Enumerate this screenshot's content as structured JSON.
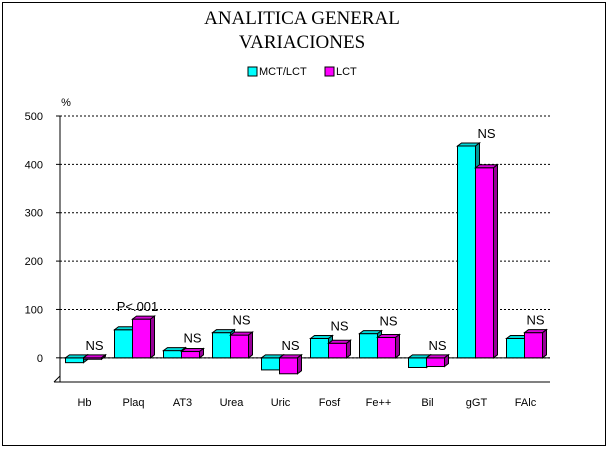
{
  "chart_data": {
    "type": "bar",
    "title": "ANALITICA GENERAL",
    "subtitle": "VARIACIONES",
    "ylabel": "%",
    "xlabel": "",
    "ylim": [
      -50,
      500
    ],
    "yticks": [
      0,
      100,
      200,
      300,
      400,
      500
    ],
    "grid": true,
    "legend_position": "top",
    "categories": [
      "Hb",
      "Plaq",
      "AT3",
      "Urea",
      "Uric",
      "Fosf",
      "Fe++",
      "Bil",
      "gGT",
      "FAlc"
    ],
    "series": [
      {
        "name": "MCT/LCT",
        "color": "#00FFFF",
        "values": [
          -10,
          58,
          15,
          52,
          -25,
          40,
          50,
          -20,
          438,
          40
        ]
      },
      {
        "name": "LCT",
        "color": "#FF00FF",
        "values": [
          -3,
          80,
          13,
          47,
          -33,
          30,
          42,
          -18,
          393,
          52
        ]
      }
    ],
    "annotations": [
      "NS",
      "P<.001",
      "NS",
      "NS",
      "NS",
      "NS",
      "NS",
      "NS",
      "NS",
      "NS"
    ]
  }
}
